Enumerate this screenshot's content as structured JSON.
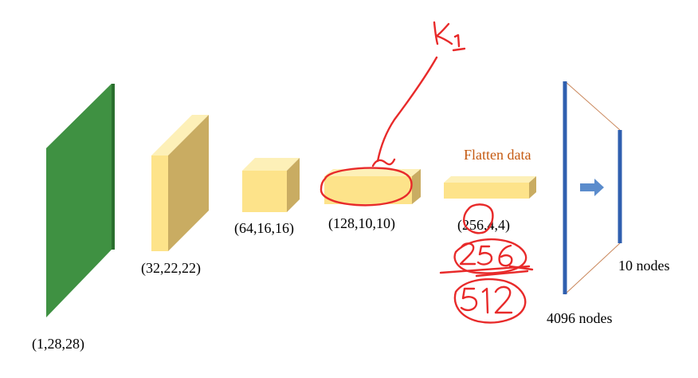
{
  "layers": [
    {
      "label": "(1,28,28)"
    },
    {
      "label": "(32,22,22)"
    },
    {
      "label": "(64,16,16)"
    },
    {
      "label": "(128,10,10)"
    },
    {
      "label": "(256,4,4)"
    }
  ],
  "flatten": {
    "label": "Flatten data"
  },
  "dense": {
    "input_label": "4096 nodes",
    "output_label": "10 nodes"
  },
  "annotations": {
    "top": "k1",
    "numbers": [
      "256",
      "512"
    ]
  },
  "colors": {
    "input_face": "#3f9142",
    "input_side": "#2f7b33",
    "block_front": "#fde38a",
    "block_top": "#fdf0b8",
    "block_side": "#c9ac62",
    "flatten_text": "#c55a11",
    "dense_line": "#2f5faf",
    "arrow": "#5b8ccc",
    "connector": "#c9865a",
    "ink": "#e82a2a"
  }
}
